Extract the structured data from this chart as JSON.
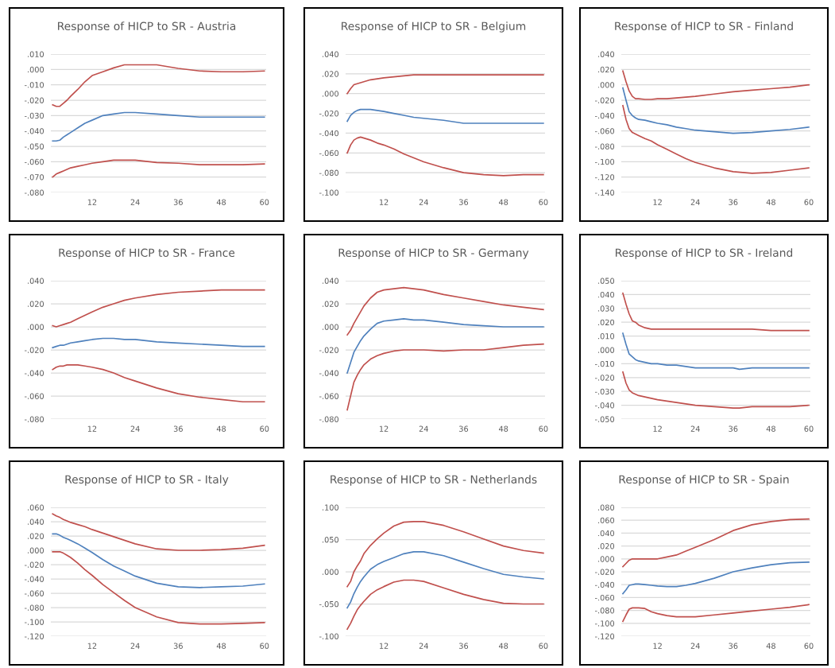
{
  "chart_data": [
    {
      "type": "line",
      "title": "Response of HICP to SR - Austria",
      "grid": "y",
      "marker": "none",
      "line_style": "solid",
      "x": [
        1,
        2,
        3,
        4,
        5,
        6,
        8,
        10,
        12,
        15,
        18,
        21,
        24,
        30,
        36,
        42,
        48,
        54,
        60
      ],
      "xlim": [
        0.5,
        60.5
      ],
      "xticks": [
        12,
        24,
        36,
        48,
        60
      ],
      "ylim": [
        -0.08,
        0.01
      ],
      "yticks": [
        {
          "value": 0.01,
          "label": ".010"
        },
        {
          "value": 0,
          "label": ".000"
        },
        {
          "value": -0.01,
          "label": "-.010"
        },
        {
          "value": -0.02,
          "label": "-.020"
        },
        {
          "value": -0.03,
          "label": "-.030"
        },
        {
          "value": -0.04,
          "label": "-.040"
        },
        {
          "value": -0.05,
          "label": "-.050"
        },
        {
          "value": -0.06,
          "label": "-.060"
        },
        {
          "value": -0.07,
          "label": "-.070"
        },
        {
          "value": -0.08,
          "label": "-.080"
        }
      ],
      "series": [
        {
          "color": "#c0504d",
          "values": [
            -0.023,
            -0.024,
            -0.024,
            -0.022,
            -0.02,
            -0.0175,
            -0.013,
            -0.008,
            -0.004,
            -0.0015,
            0.001,
            0.003,
            0.003,
            0.003,
            0.0007,
            -0.001,
            -0.0015,
            -0.0015,
            -0.001
          ]
        },
        {
          "color": "#4f81bd",
          "values": [
            -0.0465,
            -0.0465,
            -0.046,
            -0.044,
            -0.0425,
            -0.041,
            -0.038,
            -0.035,
            -0.033,
            -0.03,
            -0.029,
            -0.028,
            -0.028,
            -0.029,
            -0.03,
            -0.031,
            -0.031,
            -0.031,
            -0.031
          ]
        },
        {
          "color": "#c0504d",
          "values": [
            -0.07,
            -0.068,
            -0.067,
            -0.066,
            -0.065,
            -0.064,
            -0.063,
            -0.062,
            -0.061,
            -0.06,
            -0.059,
            -0.059,
            -0.059,
            -0.0605,
            -0.061,
            -0.062,
            -0.062,
            -0.062,
            -0.0615
          ]
        }
      ]
    },
    {
      "type": "line",
      "title": "Response of HICP to SR - Belgium",
      "grid": "y",
      "marker": "none",
      "line_style": "solid",
      "x": [
        1,
        2,
        3,
        4,
        5,
        6,
        8,
        10,
        12,
        15,
        18,
        21,
        24,
        30,
        36,
        42,
        48,
        54,
        60
      ],
      "xlim": [
        0.5,
        60.5
      ],
      "xticks": [
        12,
        24,
        36,
        48,
        60
      ],
      "ylim": [
        -0.1,
        0.04
      ],
      "yticks": [
        {
          "value": 0.04,
          "label": ".040"
        },
        {
          "value": 0.02,
          "label": ".020"
        },
        {
          "value": 0,
          "label": ".000"
        },
        {
          "value": -0.02,
          "label": "-.020"
        },
        {
          "value": -0.04,
          "label": "-.040"
        },
        {
          "value": -0.06,
          "label": "-.060"
        },
        {
          "value": -0.08,
          "label": "-.080"
        },
        {
          "value": -0.1,
          "label": "-.100"
        }
      ],
      "series": [
        {
          "color": "#c0504d",
          "values": [
            0.0,
            0.005,
            0.009,
            0.01,
            0.011,
            0.012,
            0.014,
            0.015,
            0.016,
            0.017,
            0.018,
            0.019,
            0.019,
            0.019,
            0.019,
            0.019,
            0.019,
            0.019,
            0.019
          ]
        },
        {
          "color": "#4f81bd",
          "values": [
            -0.028,
            -0.022,
            -0.019,
            -0.017,
            -0.016,
            -0.016,
            -0.016,
            -0.017,
            -0.018,
            -0.02,
            -0.022,
            -0.024,
            -0.025,
            -0.027,
            -0.03,
            -0.03,
            -0.03,
            -0.03,
            -0.03
          ]
        },
        {
          "color": "#c0504d",
          "values": [
            -0.06,
            -0.052,
            -0.047,
            -0.045,
            -0.044,
            -0.045,
            -0.047,
            -0.05,
            -0.052,
            -0.056,
            -0.061,
            -0.065,
            -0.069,
            -0.075,
            -0.08,
            -0.082,
            -0.083,
            -0.082,
            -0.082
          ]
        }
      ]
    },
    {
      "type": "line",
      "title": "Response of HICP to SR - Finland",
      "grid": "y",
      "marker": "none",
      "line_style": "solid",
      "x": [
        1,
        2,
        3,
        4,
        5,
        6,
        8,
        10,
        12,
        15,
        18,
        21,
        24,
        30,
        36,
        42,
        48,
        54,
        60
      ],
      "xlim": [
        0.5,
        60.5
      ],
      "xticks": [
        12,
        24,
        36,
        48,
        60
      ],
      "ylim": [
        -0.14,
        0.04
      ],
      "yticks": [
        {
          "value": 0.04,
          "label": ".040"
        },
        {
          "value": 0.02,
          "label": ".020"
        },
        {
          "value": 0,
          "label": ".000"
        },
        {
          "value": -0.02,
          "label": "-.020"
        },
        {
          "value": -0.04,
          "label": "-.040"
        },
        {
          "value": -0.06,
          "label": "-.060"
        },
        {
          "value": -0.08,
          "label": "-.080"
        },
        {
          "value": -0.1,
          "label": "-.100"
        },
        {
          "value": -0.12,
          "label": "-.120"
        },
        {
          "value": -0.14,
          "label": "-.140"
        }
      ],
      "series": [
        {
          "color": "#c0504d",
          "values": [
            0.018,
            0.004,
            -0.008,
            -0.015,
            -0.018,
            -0.018,
            -0.019,
            -0.019,
            -0.018,
            -0.018,
            -0.017,
            -0.016,
            -0.015,
            -0.012,
            -0.009,
            -0.007,
            -0.005,
            -0.003,
            0.0
          ]
        },
        {
          "color": "#4f81bd",
          "values": [
            -0.004,
            -0.02,
            -0.035,
            -0.04,
            -0.043,
            -0.045,
            -0.046,
            -0.048,
            -0.05,
            -0.052,
            -0.055,
            -0.057,
            -0.059,
            -0.061,
            -0.063,
            -0.062,
            -0.06,
            -0.058,
            -0.055
          ]
        },
        {
          "color": "#c0504d",
          "values": [
            -0.027,
            -0.045,
            -0.057,
            -0.062,
            -0.064,
            -0.066,
            -0.07,
            -0.073,
            -0.078,
            -0.084,
            -0.09,
            -0.096,
            -0.101,
            -0.108,
            -0.113,
            -0.115,
            -0.114,
            -0.111,
            -0.108
          ]
        }
      ]
    },
    {
      "type": "line",
      "title": "Response of HICP to SR - France",
      "grid": "y",
      "marker": "none",
      "line_style": "solid",
      "x": [
        1,
        2,
        3,
        4,
        5,
        6,
        8,
        10,
        12,
        15,
        18,
        21,
        24,
        30,
        36,
        42,
        48,
        54,
        60
      ],
      "xlim": [
        0.5,
        60.5
      ],
      "xticks": [
        12,
        24,
        36,
        48,
        60
      ],
      "ylim": [
        -0.08,
        0.04
      ],
      "yticks": [
        {
          "value": 0.04,
          "label": ".040"
        },
        {
          "value": 0.02,
          "label": ".020"
        },
        {
          "value": 0,
          "label": ".000"
        },
        {
          "value": -0.02,
          "label": "-.020"
        },
        {
          "value": -0.04,
          "label": "-.040"
        },
        {
          "value": -0.06,
          "label": "-.060"
        },
        {
          "value": -0.08,
          "label": "-.080"
        }
      ],
      "series": [
        {
          "color": "#c0504d",
          "values": [
            0.001,
            0.0,
            0.001,
            0.002,
            0.003,
            0.004,
            0.007,
            0.01,
            0.013,
            0.017,
            0.02,
            0.023,
            0.025,
            0.028,
            0.03,
            0.031,
            0.032,
            0.032,
            0.032
          ]
        },
        {
          "color": "#4f81bd",
          "values": [
            -0.018,
            -0.017,
            -0.016,
            -0.016,
            -0.015,
            -0.014,
            -0.013,
            -0.012,
            -0.011,
            -0.01,
            -0.01,
            -0.011,
            -0.011,
            -0.013,
            -0.014,
            -0.015,
            -0.016,
            -0.017,
            -0.017
          ]
        },
        {
          "color": "#c0504d",
          "values": [
            -0.037,
            -0.035,
            -0.034,
            -0.034,
            -0.033,
            -0.033,
            -0.033,
            -0.034,
            -0.035,
            -0.037,
            -0.04,
            -0.044,
            -0.047,
            -0.053,
            -0.058,
            -0.061,
            -0.063,
            -0.065,
            -0.065
          ]
        }
      ]
    },
    {
      "type": "line",
      "title": "Response of HICP to SR - Germany",
      "grid": "y",
      "marker": "none",
      "line_style": "solid",
      "x": [
        1,
        2,
        3,
        4,
        5,
        6,
        8,
        10,
        12,
        15,
        18,
        21,
        24,
        30,
        36,
        42,
        48,
        54,
        60
      ],
      "xlim": [
        0.5,
        60.5
      ],
      "xticks": [
        12,
        24,
        36,
        48,
        60
      ],
      "ylim": [
        -0.08,
        0.04
      ],
      "yticks": [
        {
          "value": 0.04,
          "label": ".040"
        },
        {
          "value": 0.02,
          "label": ".020"
        },
        {
          "value": 0,
          "label": ".000"
        },
        {
          "value": -0.02,
          "label": "-.020"
        },
        {
          "value": -0.04,
          "label": "-.040"
        },
        {
          "value": -0.06,
          "label": "-.060"
        },
        {
          "value": -0.08,
          "label": "-.080"
        }
      ],
      "series": [
        {
          "color": "#c0504d",
          "values": [
            -0.007,
            -0.003,
            0.003,
            0.008,
            0.013,
            0.018,
            0.025,
            0.03,
            0.032,
            0.033,
            0.034,
            0.033,
            0.032,
            0.028,
            0.025,
            0.022,
            0.019,
            0.017,
            0.015
          ]
        },
        {
          "color": "#4f81bd",
          "values": [
            -0.04,
            -0.031,
            -0.022,
            -0.017,
            -0.012,
            -0.008,
            -0.002,
            0.003,
            0.005,
            0.006,
            0.007,
            0.006,
            0.006,
            0.004,
            0.002,
            0.001,
            0.0,
            0.0,
            0.0
          ]
        },
        {
          "color": "#c0504d",
          "values": [
            -0.072,
            -0.06,
            -0.048,
            -0.042,
            -0.037,
            -0.033,
            -0.028,
            -0.025,
            -0.023,
            -0.021,
            -0.02,
            -0.02,
            -0.02,
            -0.021,
            -0.02,
            -0.02,
            -0.018,
            -0.016,
            -0.015
          ]
        }
      ]
    },
    {
      "type": "line",
      "title": "Response of HICP to SR - Ireland",
      "grid": "y",
      "marker": "none",
      "line_style": "solid",
      "x": [
        1,
        2,
        3,
        4,
        5,
        6,
        8,
        10,
        12,
        15,
        18,
        21,
        24,
        30,
        36,
        38,
        42,
        48,
        54,
        60
      ],
      "xlim": [
        0.5,
        60.5
      ],
      "xticks": [
        12,
        24,
        36,
        48,
        60
      ],
      "ylim": [
        -0.05,
        0.05
      ],
      "yticks": [
        {
          "value": 0.05,
          "label": ".050"
        },
        {
          "value": 0.04,
          "label": ".040"
        },
        {
          "value": 0.03,
          "label": ".030"
        },
        {
          "value": 0.02,
          "label": ".020"
        },
        {
          "value": 0.01,
          "label": ".010"
        },
        {
          "value": 0,
          "label": ".000"
        },
        {
          "value": -0.01,
          "label": "-.010"
        },
        {
          "value": -0.02,
          "label": "-.020"
        },
        {
          "value": -0.03,
          "label": "-.030"
        },
        {
          "value": -0.04,
          "label": "-.040"
        },
        {
          "value": -0.05,
          "label": "-.050"
        }
      ],
      "series": [
        {
          "color": "#c0504d",
          "values": [
            0.041,
            0.033,
            0.026,
            0.021,
            0.02,
            0.018,
            0.016,
            0.015,
            0.015,
            0.015,
            0.015,
            0.015,
            0.015,
            0.015,
            0.015,
            0.015,
            0.015,
            0.014,
            0.014,
            0.014
          ]
        },
        {
          "color": "#4f81bd",
          "values": [
            0.012,
            0.004,
            -0.003,
            -0.005,
            -0.007,
            -0.008,
            -0.009,
            -0.01,
            -0.01,
            -0.011,
            -0.011,
            -0.012,
            -0.013,
            -0.013,
            -0.013,
            -0.014,
            -0.013,
            -0.013,
            -0.013,
            -0.013
          ]
        },
        {
          "color": "#c0504d",
          "values": [
            -0.016,
            -0.024,
            -0.029,
            -0.031,
            -0.032,
            -0.033,
            -0.034,
            -0.035,
            -0.036,
            -0.037,
            -0.038,
            -0.039,
            -0.04,
            -0.041,
            -0.042,
            -0.042,
            -0.041,
            -0.041,
            -0.041,
            -0.04
          ]
        }
      ]
    },
    {
      "type": "line",
      "title": "Response of HICP to SR - Italy",
      "grid": "y",
      "marker": "none",
      "line_style": "solid",
      "x": [
        1,
        2,
        3,
        4,
        5,
        6,
        8,
        10,
        12,
        15,
        18,
        21,
        24,
        30,
        36,
        42,
        48,
        54,
        60
      ],
      "xlim": [
        0.5,
        60.5
      ],
      "xticks": [
        12,
        24,
        36,
        48,
        60
      ],
      "ylim": [
        -0.12,
        0.06
      ],
      "yticks": [
        {
          "value": 0.06,
          "label": ".060"
        },
        {
          "value": 0.04,
          "label": ".040"
        },
        {
          "value": 0.02,
          "label": ".020"
        },
        {
          "value": 0,
          "label": ".000"
        },
        {
          "value": -0.02,
          "label": "-.020"
        },
        {
          "value": -0.04,
          "label": "-.040"
        },
        {
          "value": -0.06,
          "label": "-.060"
        },
        {
          "value": -0.08,
          "label": "-.080"
        },
        {
          "value": -0.1,
          "label": "-.100"
        },
        {
          "value": -0.12,
          "label": "-.120"
        }
      ],
      "series": [
        {
          "color": "#c0504d",
          "values": [
            0.051,
            0.048,
            0.046,
            0.043,
            0.041,
            0.039,
            0.036,
            0.033,
            0.029,
            0.024,
            0.019,
            0.014,
            0.009,
            0.002,
            0.0,
            0.0,
            0.001,
            0.003,
            0.007
          ]
        },
        {
          "color": "#4f81bd",
          "values": [
            0.023,
            0.023,
            0.021,
            0.018,
            0.016,
            0.014,
            0.009,
            0.003,
            -0.003,
            -0.013,
            -0.022,
            -0.029,
            -0.036,
            -0.046,
            -0.051,
            -0.052,
            -0.051,
            -0.05,
            -0.047
          ]
        },
        {
          "color": "#c0504d",
          "values": [
            -0.002,
            -0.002,
            -0.002,
            -0.004,
            -0.007,
            -0.01,
            -0.018,
            -0.027,
            -0.035,
            -0.048,
            -0.059,
            -0.07,
            -0.08,
            -0.093,
            -0.101,
            -0.103,
            -0.103,
            -0.102,
            -0.101
          ]
        }
      ]
    },
    {
      "type": "line",
      "title": "Response of HICP to SR - Netherlands",
      "grid": "y",
      "marker": "none",
      "line_style": "solid",
      "x": [
        1,
        2,
        3,
        4,
        5,
        6,
        8,
        10,
        12,
        15,
        18,
        21,
        24,
        30,
        36,
        42,
        48,
        54,
        60
      ],
      "xlim": [
        0.5,
        60.5
      ],
      "xticks": [
        12,
        24,
        36,
        48,
        60
      ],
      "ylim": [
        -0.1,
        0.1
      ],
      "yticks": [
        {
          "value": 0.1,
          "label": ".100"
        },
        {
          "value": 0.05,
          "label": ".050"
        },
        {
          "value": 0,
          "label": ".000"
        },
        {
          "value": -0.05,
          "label": "-.050"
        },
        {
          "value": -0.1,
          "label": "-.100"
        }
      ],
      "series": [
        {
          "color": "#c0504d",
          "values": [
            -0.023,
            -0.015,
            0.0,
            0.009,
            0.017,
            0.028,
            0.041,
            0.051,
            0.06,
            0.071,
            0.077,
            0.078,
            0.078,
            0.072,
            0.062,
            0.051,
            0.04,
            0.033,
            0.029
          ]
        },
        {
          "color": "#4f81bd",
          "values": [
            -0.056,
            -0.047,
            -0.034,
            -0.024,
            -0.015,
            -0.008,
            0.004,
            0.011,
            0.016,
            0.022,
            0.028,
            0.031,
            0.031,
            0.025,
            0.015,
            0.005,
            -0.004,
            -0.008,
            -0.011
          ]
        },
        {
          "color": "#c0504d",
          "values": [
            -0.089,
            -0.08,
            -0.069,
            -0.059,
            -0.052,
            -0.046,
            -0.035,
            -0.028,
            -0.023,
            -0.016,
            -0.013,
            -0.013,
            -0.015,
            -0.025,
            -0.035,
            -0.043,
            -0.049,
            -0.05,
            -0.05
          ]
        }
      ]
    },
    {
      "type": "line",
      "title": "Response of HICP to SR - Spain",
      "grid": "y",
      "marker": "none",
      "line_style": "solid",
      "x": [
        1,
        2,
        3,
        4,
        5,
        6,
        8,
        10,
        12,
        15,
        18,
        21,
        24,
        30,
        36,
        42,
        48,
        54,
        60
      ],
      "xlim": [
        0.5,
        60.5
      ],
      "xticks": [
        12,
        24,
        36,
        48,
        60
      ],
      "ylim": [
        -0.12,
        0.08
      ],
      "yticks": [
        {
          "value": 0.08,
          "label": ".080"
        },
        {
          "value": 0.06,
          "label": ".060"
        },
        {
          "value": 0.04,
          "label": ".040"
        },
        {
          "value": 0.02,
          "label": ".020"
        },
        {
          "value": 0,
          "label": ".000"
        },
        {
          "value": -0.02,
          "label": "-.020"
        },
        {
          "value": -0.04,
          "label": "-.040"
        },
        {
          "value": -0.06,
          "label": "-.060"
        },
        {
          "value": -0.08,
          "label": "-.080"
        },
        {
          "value": -0.1,
          "label": "-.100"
        },
        {
          "value": -0.12,
          "label": "-.120"
        }
      ],
      "series": [
        {
          "color": "#c0504d",
          "values": [
            -0.012,
            -0.007,
            -0.002,
            0.0,
            0.0,
            0.0,
            0.0,
            0.0,
            0.0,
            0.003,
            0.006,
            0.012,
            0.018,
            0.03,
            0.044,
            0.053,
            0.058,
            0.061,
            0.062
          ]
        },
        {
          "color": "#4f81bd",
          "values": [
            -0.054,
            -0.048,
            -0.041,
            -0.04,
            -0.039,
            -0.039,
            -0.04,
            -0.041,
            -0.042,
            -0.043,
            -0.043,
            -0.041,
            -0.038,
            -0.03,
            -0.02,
            -0.014,
            -0.009,
            -0.006,
            -0.005
          ]
        },
        {
          "color": "#c0504d",
          "values": [
            -0.097,
            -0.087,
            -0.078,
            -0.076,
            -0.076,
            -0.076,
            -0.077,
            -0.082,
            -0.085,
            -0.088,
            -0.09,
            -0.09,
            -0.09,
            -0.087,
            -0.084,
            -0.081,
            -0.078,
            -0.075,
            -0.071
          ]
        }
      ]
    }
  ]
}
